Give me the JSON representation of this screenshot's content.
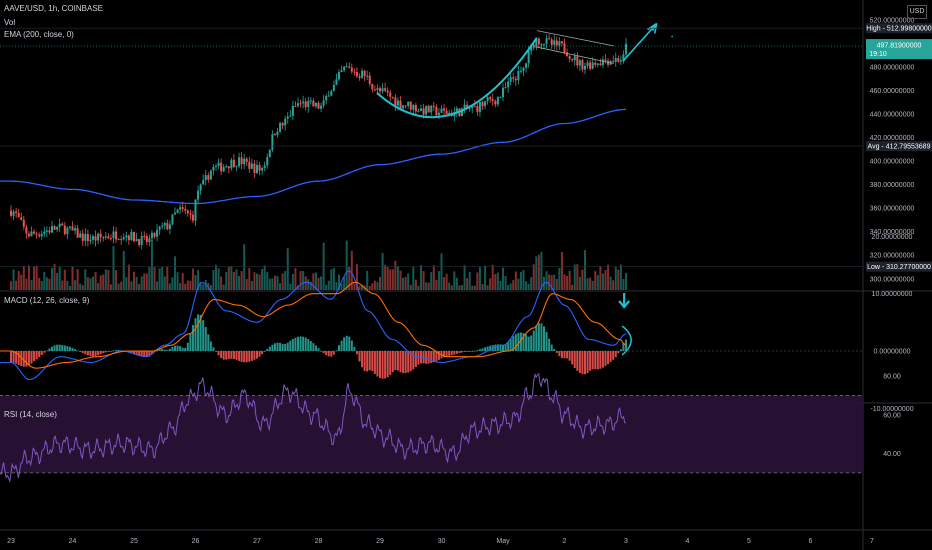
{
  "header": {
    "symbol": "AAVE/USD, 1h, COINBASE",
    "vol_label": "Vol",
    "ema_label": "EMA (200, close, 0)",
    "macd_label": "MACD (12, 26, close, 9)",
    "rsi_label": "RSI (14, close)",
    "currency": "USD"
  },
  "colors": {
    "up": "#26a69a",
    "down": "#ef5350",
    "ema": "#2962ff",
    "macd": "#2962ff",
    "signal": "#ff6d00",
    "rsi": "#7e57c2",
    "annotation": "#1fbfd0",
    "background": "#000000"
  },
  "chart_data": [
    {
      "type": "candlestick",
      "title": "AAVE/USD, 1h, COINBASE",
      "ylim": [
        300,
        525
      ],
      "y_ticks": [
        "520.00000000",
        "500.00000000",
        "480.00000000",
        "460.00000000",
        "440.00000000",
        "420.00000000",
        "400.00000000",
        "380.00000000",
        "360.00000000",
        "340.00000000",
        "320.00000000",
        "300.00000000"
      ],
      "y_tick_values": [
        520,
        500,
        480,
        460,
        440,
        420,
        400,
        380,
        360,
        340,
        320,
        300
      ],
      "x_ticks": [
        "23",
        "24",
        "25",
        "26",
        "27",
        "28",
        "29",
        "30",
        "May",
        "2",
        "3",
        "4",
        "5",
        "6",
        "7"
      ],
      "x_tick_pos": [
        0,
        1,
        2,
        3,
        4,
        5,
        6,
        7,
        8,
        9,
        10,
        11,
        12,
        13,
        14
      ],
      "price_anchors": [
        [
          0,
          358
        ],
        [
          0.3,
          338
        ],
        [
          0.8,
          343
        ],
        [
          1.3,
          334
        ],
        [
          1.8,
          338
        ],
        [
          2.2,
          332
        ],
        [
          2.5,
          344
        ],
        [
          2.75,
          358
        ],
        [
          2.95,
          353
        ],
        [
          3.05,
          376
        ],
        [
          3.3,
          394
        ],
        [
          3.7,
          400
        ],
        [
          4.05,
          393
        ],
        [
          4.35,
          429
        ],
        [
          4.7,
          449
        ],
        [
          5.05,
          446
        ],
        [
          5.2,
          462
        ],
        [
          5.45,
          479
        ],
        [
          5.7,
          474
        ],
        [
          6.0,
          459
        ],
        [
          6.4,
          448
        ],
        [
          6.75,
          443
        ],
        [
          7.15,
          441
        ],
        [
          7.5,
          445
        ],
        [
          7.85,
          452
        ],
        [
          8.25,
          473
        ],
        [
          8.55,
          503
        ],
        [
          8.9,
          498
        ],
        [
          9.3,
          482
        ],
        [
          9.7,
          486
        ],
        [
          9.95,
          487
        ],
        [
          10.0,
          497
        ]
      ],
      "ema": {
        "name": "EMA (200, close, 0)",
        "anchors": [
          [
            0,
            383
          ],
          [
            1,
            376
          ],
          [
            2,
            367
          ],
          [
            3,
            364
          ],
          [
            4,
            370
          ],
          [
            5,
            383
          ],
          [
            6,
            397
          ],
          [
            7,
            406
          ],
          [
            8,
            416
          ],
          [
            9,
            432
          ],
          [
            10,
            444
          ]
        ]
      },
      "markers": [
        {
          "label": "High",
          "value": "512.99800000",
          "price": 513,
          "color": "#ffffff"
        },
        {
          "label": "Avg",
          "value": "412.79553689",
          "price": 412.8,
          "color": "#ffffff"
        },
        {
          "label": "Low",
          "value": "310.27700000",
          "price": 310.3,
          "color": "#ffffff"
        }
      ],
      "last_price": {
        "value": "497.81900000",
        "price": 497.82,
        "countdown": "19:10"
      }
    },
    {
      "type": "bar",
      "title": "Vol",
      "note": "volume histogram overlay"
    },
    {
      "type": "line",
      "title": "MACD (12, 26, close, 9)",
      "ylim": [
        -13,
        21
      ],
      "y_ticks": [
        "20.00000000",
        "10.00000000",
        "0.00000000",
        "-10.00000000"
      ],
      "y_tick_values": [
        20,
        10,
        0,
        -10
      ],
      "series": [
        {
          "name": "MACD",
          "anchors": [
            [
              0,
              -2
            ],
            [
              0.3,
              -5
            ],
            [
              0.8,
              -1
            ],
            [
              1.3,
              -2
            ],
            [
              1.8,
              0
            ],
            [
              2.2,
              -1
            ],
            [
              2.5,
              1
            ],
            [
              2.8,
              3
            ],
            [
              3.1,
              12
            ],
            [
              3.5,
              7
            ],
            [
              4.0,
              5
            ],
            [
              4.4,
              9
            ],
            [
              4.8,
              12
            ],
            [
              5.2,
              9
            ],
            [
              5.5,
              14
            ],
            [
              5.8,
              7
            ],
            [
              6.2,
              2
            ],
            [
              6.6,
              -1
            ],
            [
              7.0,
              -2
            ],
            [
              7.5,
              -1
            ],
            [
              8.0,
              1
            ],
            [
              8.4,
              6
            ],
            [
              8.7,
              12
            ],
            [
              9.0,
              8
            ],
            [
              9.4,
              2
            ],
            [
              9.8,
              1
            ],
            [
              10.0,
              3
            ]
          ]
        },
        {
          "name": "Signal",
          "anchors": [
            [
              0,
              0
            ],
            [
              0.4,
              -3
            ],
            [
              0.9,
              -2
            ],
            [
              1.4,
              -1
            ],
            [
              1.9,
              0
            ],
            [
              2.3,
              0
            ],
            [
              2.6,
              1
            ],
            [
              2.9,
              3
            ],
            [
              3.3,
              9
            ],
            [
              3.7,
              8
            ],
            [
              4.1,
              6
            ],
            [
              4.5,
              8
            ],
            [
              4.9,
              10
            ],
            [
              5.3,
              10
            ],
            [
              5.6,
              12
            ],
            [
              5.9,
              10
            ],
            [
              6.3,
              5
            ],
            [
              6.7,
              1
            ],
            [
              7.1,
              -1
            ],
            [
              7.6,
              -1
            ],
            [
              8.1,
              0
            ],
            [
              8.5,
              4
            ],
            [
              8.8,
              10
            ],
            [
              9.1,
              9
            ],
            [
              9.5,
              5
            ],
            [
              9.9,
              2
            ],
            [
              10.0,
              1
            ]
          ]
        }
      ]
    },
    {
      "type": "line",
      "title": "RSI (14, close)",
      "ylim": [
        25,
        88
      ],
      "y_ticks": [
        "80.00",
        "60.00",
        "40.00"
      ],
      "y_tick_values": [
        80,
        60,
        40
      ],
      "bands": [
        70,
        30
      ],
      "series": [
        {
          "name": "RSI",
          "anchors": [
            [
              0,
              30
            ],
            [
              0.3,
              38
            ],
            [
              0.8,
              45
            ],
            [
              1.3,
              42
            ],
            [
              1.8,
              45
            ],
            [
              2.3,
              42
            ],
            [
              2.6,
              52
            ],
            [
              2.9,
              68
            ],
            [
              3.1,
              75
            ],
            [
              3.5,
              60
            ],
            [
              3.8,
              70
            ],
            [
              4.1,
              55
            ],
            [
              4.5,
              72
            ],
            [
              4.9,
              60
            ],
            [
              5.3,
              48
            ],
            [
              5.5,
              72
            ],
            [
              5.8,
              55
            ],
            [
              6.1,
              48
            ],
            [
              6.4,
              42
            ],
            [
              6.8,
              45
            ],
            [
              7.2,
              40
            ],
            [
              7.5,
              52
            ],
            [
              7.9,
              55
            ],
            [
              8.2,
              58
            ],
            [
              8.4,
              70
            ],
            [
              8.6,
              80
            ],
            [
              8.8,
              70
            ],
            [
              9.0,
              60
            ],
            [
              9.3,
              53
            ],
            [
              9.7,
              55
            ],
            [
              10.0,
              60
            ]
          ]
        }
      ]
    }
  ]
}
